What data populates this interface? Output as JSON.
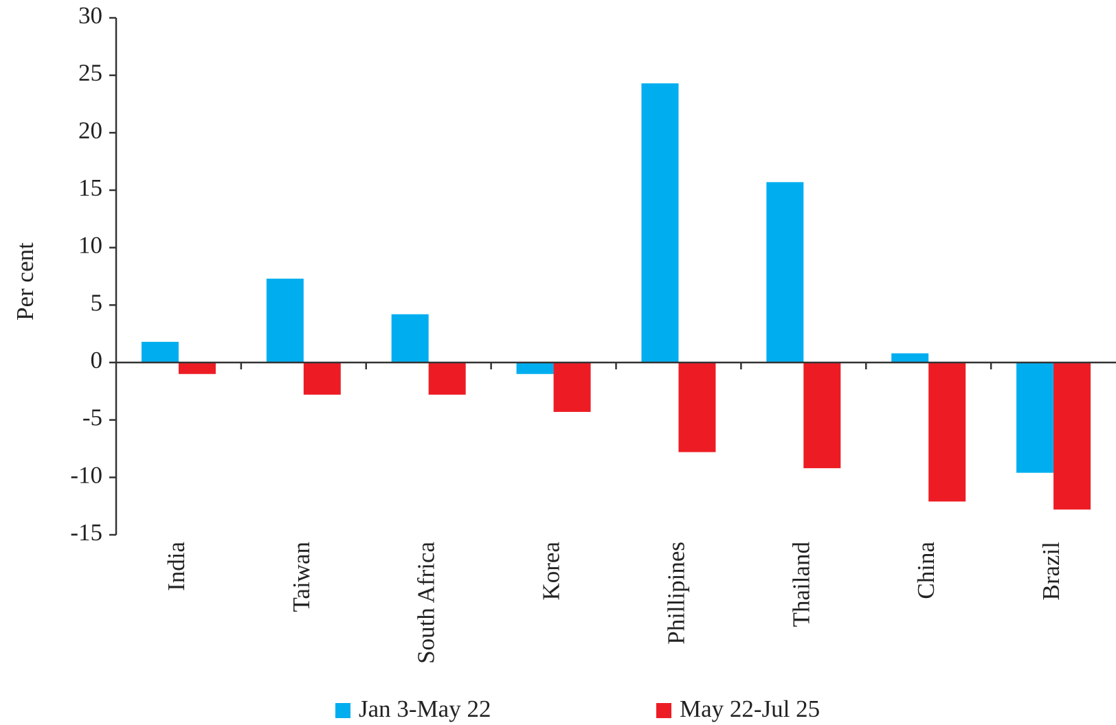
{
  "chart_data": {
    "type": "bar",
    "y_label": "Per cent",
    "categories": [
      "India",
      "Taiwan",
      "South Africa",
      "Korea",
      "Phillipines",
      "Thailand",
      "China",
      "Brazil"
    ],
    "series": [
      {
        "name": "Jan 3-May 22",
        "color": "#00aeef",
        "values": [
          1.8,
          7.3,
          4.2,
          -1.0,
          24.3,
          15.7,
          0.8,
          -9.6
        ]
      },
      {
        "name": "May 22-Jul 25",
        "color": "#ed1c24",
        "values": [
          -1.0,
          -2.8,
          -2.8,
          -4.3,
          -7.8,
          -9.2,
          -12.1,
          -12.8
        ]
      }
    ],
    "ylim": [
      -15,
      30
    ],
    "yticks": [
      -15,
      -10,
      -5,
      0,
      5,
      10,
      15,
      20,
      25,
      30
    ],
    "grid": false,
    "legend": "bottom"
  }
}
